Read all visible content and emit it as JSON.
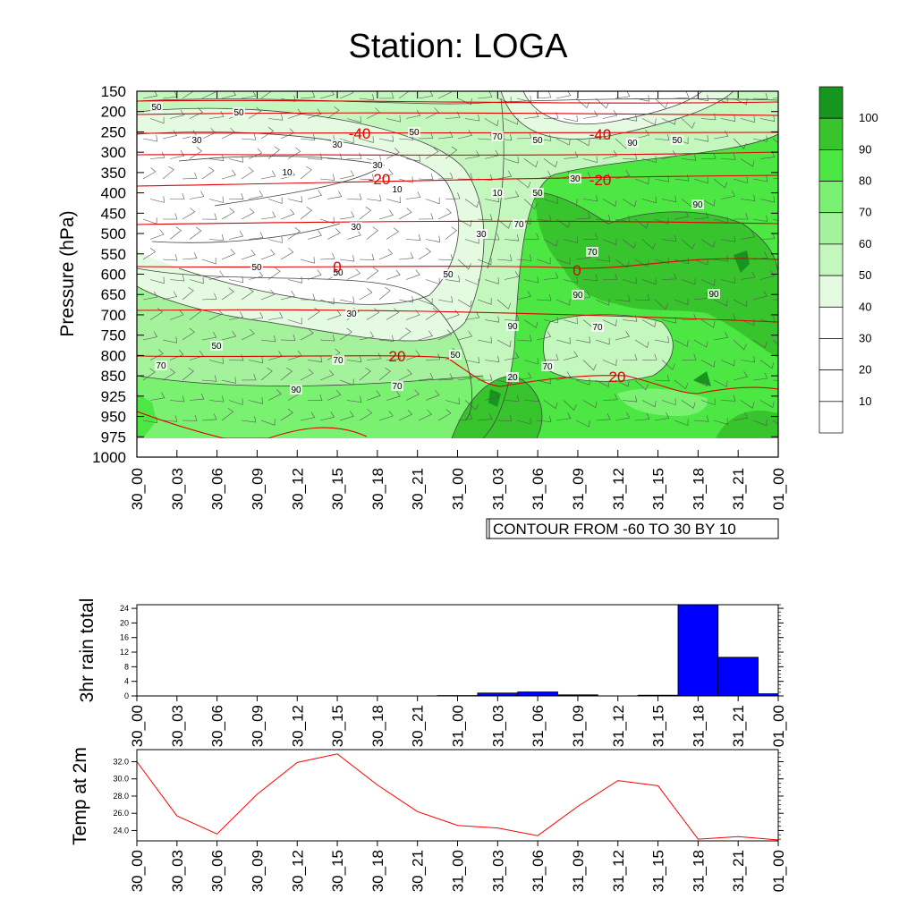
{
  "title": "Station: LOGA",
  "times": [
    "30_00",
    "30_03",
    "30_06",
    "30_09",
    "30_12",
    "30_15",
    "30_18",
    "30_21",
    "31_00",
    "31_03",
    "31_06",
    "31_09",
    "31_12",
    "31_15",
    "31_18",
    "31_21",
    "01_00"
  ],
  "chart_data": [
    {
      "type": "heatmap",
      "ylabel": "Pressure (hPa)",
      "pressure_levels": [
        150,
        200,
        250,
        300,
        350,
        400,
        450,
        500,
        550,
        600,
        650,
        700,
        750,
        800,
        850,
        925,
        950,
        975,
        1000
      ],
      "humidity_contour_labels": [
        50,
        50,
        30,
        30,
        50,
        10,
        30,
        10,
        30,
        30,
        50,
        50,
        10,
        50,
        30,
        70,
        50,
        90,
        70,
        50,
        30,
        70,
        90,
        90,
        50,
        90,
        90,
        70,
        70,
        50,
        50,
        70,
        70,
        90,
        70,
        20
      ],
      "temperature_contour_labels": [
        "-40",
        "-40",
        "-20",
        "-20",
        "0",
        "0",
        "20",
        "20"
      ],
      "colorbar": {
        "labels": [
          "100",
          "90",
          "80",
          "70",
          "60",
          "50",
          "40",
          "30",
          "20",
          "10"
        ],
        "colors": [
          "#16961e",
          "#37c42d",
          "#4de744",
          "#7af171",
          "#a4f29c",
          "#c4f7bd",
          "#e4fbe1",
          "#ffffff",
          "#ffffff",
          "#ffffff",
          "#ffffff"
        ]
      },
      "info_label": "CONTOUR FROM -60 TO 30 BY 10"
    },
    {
      "type": "bar",
      "ylabel": "3hr rain total",
      "ylim": [
        0,
        25
      ],
      "yticks": [
        "0",
        "4",
        "8",
        "12",
        "16",
        "20",
        "24"
      ],
      "categories": [
        "30_00",
        "30_03",
        "30_06",
        "30_09",
        "30_12",
        "30_15",
        "30_18",
        "30_21",
        "31_00",
        "31_03",
        "31_06",
        "31_09",
        "31_12",
        "31_15",
        "31_18",
        "31_21",
        "01_00"
      ],
      "values": [
        0,
        0,
        0,
        0,
        0,
        0,
        0,
        0,
        0.1,
        0.8,
        1.1,
        0.3,
        0,
        0.2,
        25,
        10.6,
        0.6
      ],
      "color": "#0000ff"
    },
    {
      "type": "line",
      "ylabel": "Temp at 2m",
      "ylim": [
        22.8,
        33.4
      ],
      "yticks": [
        "24.0",
        "26.0",
        "28.0",
        "30.0",
        "32.0"
      ],
      "categories": [
        "30_00",
        "30_03",
        "30_06",
        "30_09",
        "30_12",
        "30_15",
        "30_18",
        "30_21",
        "31_00",
        "31_03",
        "31_06",
        "31_09",
        "31_12",
        "31_15",
        "31_18",
        "31_21",
        "01_00"
      ],
      "values": [
        32.0,
        25.7,
        23.6,
        28.2,
        31.9,
        32.9,
        29.3,
        26.2,
        24.6,
        24.3,
        23.4,
        26.8,
        29.8,
        29.2,
        23.0,
        23.3,
        22.9
      ],
      "color": "#ff0000"
    }
  ]
}
